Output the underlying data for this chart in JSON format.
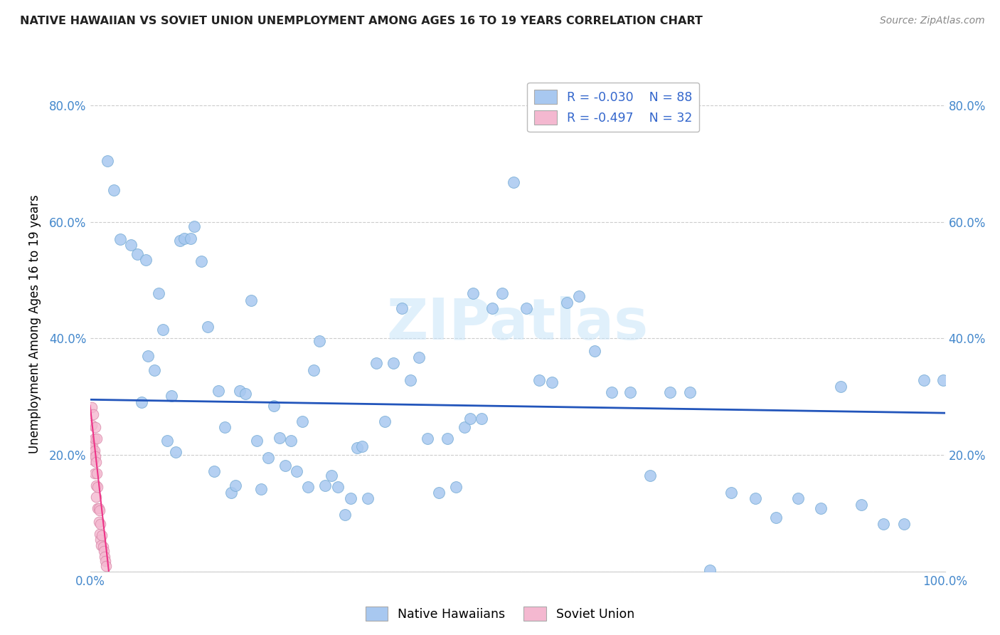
{
  "title": "NATIVE HAWAIIAN VS SOVIET UNION UNEMPLOYMENT AMONG AGES 16 TO 19 YEARS CORRELATION CHART",
  "source": "Source: ZipAtlas.com",
  "ylabel": "Unemployment Among Ages 16 to 19 years",
  "xlim": [
    0,
    1.0
  ],
  "ylim": [
    0,
    0.85
  ],
  "legend_entries": [
    {
      "label": "Native Hawaiians",
      "color": "#a8c8f0",
      "edge": "#7aaed6",
      "r": -0.03,
      "n": 88
    },
    {
      "label": "Soviet Union",
      "color": "#f4b8d0",
      "edge": "#d888a8",
      "r": -0.497,
      "n": 32
    }
  ],
  "blue_line": {
    "x0": 0.0,
    "x1": 1.0,
    "y0": 0.295,
    "y1": 0.272,
    "color": "#2255bb",
    "lw": 2.0
  },
  "pink_line": {
    "x0": 0.0,
    "x1": 0.022,
    "y0": 0.285,
    "y1": 0.0,
    "color": "#ee3388",
    "lw": 1.5
  },
  "scatter_blue": {
    "x": [
      0.02,
      0.028,
      0.035,
      0.048,
      0.055,
      0.06,
      0.065,
      0.068,
      0.075,
      0.08,
      0.085,
      0.09,
      0.095,
      0.1,
      0.105,
      0.11,
      0.118,
      0.122,
      0.13,
      0.138,
      0.145,
      0.15,
      0.158,
      0.165,
      0.17,
      0.175,
      0.182,
      0.188,
      0.195,
      0.2,
      0.208,
      0.215,
      0.222,
      0.228,
      0.235,
      0.242,
      0.248,
      0.255,
      0.262,
      0.268,
      0.275,
      0.282,
      0.29,
      0.298,
      0.305,
      0.312,
      0.318,
      0.325,
      0.335,
      0.345,
      0.355,
      0.365,
      0.375,
      0.385,
      0.395,
      0.408,
      0.418,
      0.428,
      0.438,
      0.448,
      0.458,
      0.47,
      0.482,
      0.495,
      0.51,
      0.525,
      0.54,
      0.558,
      0.572,
      0.59,
      0.61,
      0.632,
      0.655,
      0.678,
      0.702,
      0.725,
      0.75,
      0.778,
      0.802,
      0.828,
      0.855,
      0.878,
      0.902,
      0.928,
      0.952,
      0.975,
      0.998,
      0.445
    ],
    "y": [
      0.705,
      0.655,
      0.57,
      0.56,
      0.545,
      0.29,
      0.535,
      0.37,
      0.345,
      0.478,
      0.415,
      0.225,
      0.302,
      0.205,
      0.568,
      0.572,
      0.572,
      0.592,
      0.532,
      0.42,
      0.172,
      0.31,
      0.248,
      0.135,
      0.148,
      0.31,
      0.305,
      0.465,
      0.225,
      0.142,
      0.195,
      0.285,
      0.23,
      0.182,
      0.225,
      0.172,
      0.258,
      0.145,
      0.345,
      0.395,
      0.148,
      0.165,
      0.145,
      0.098,
      0.125,
      0.212,
      0.215,
      0.125,
      0.358,
      0.258,
      0.358,
      0.452,
      0.328,
      0.368,
      0.228,
      0.135,
      0.228,
      0.145,
      0.248,
      0.478,
      0.262,
      0.452,
      0.478,
      0.668,
      0.452,
      0.328,
      0.325,
      0.462,
      0.472,
      0.378,
      0.308,
      0.308,
      0.165,
      0.308,
      0.308,
      0.002,
      0.135,
      0.125,
      0.092,
      0.125,
      0.108,
      0.318,
      0.115,
      0.082,
      0.082,
      0.328,
      0.328,
      0.262
    ]
  },
  "scatter_pink": {
    "x": [
      0.002,
      0.002,
      0.003,
      0.003,
      0.004,
      0.004,
      0.004,
      0.005,
      0.005,
      0.005,
      0.006,
      0.006,
      0.007,
      0.007,
      0.007,
      0.008,
      0.008,
      0.009,
      0.009,
      0.01,
      0.01,
      0.011,
      0.011,
      0.012,
      0.012,
      0.013,
      0.014,
      0.015,
      0.016,
      0.017,
      0.018,
      0.019
    ],
    "y": [
      0.282,
      0.252,
      0.225,
      0.215,
      0.205,
      0.27,
      0.192,
      0.228,
      0.208,
      0.168,
      0.248,
      0.198,
      0.148,
      0.188,
      0.128,
      0.168,
      0.228,
      0.108,
      0.145,
      0.108,
      0.085,
      0.065,
      0.105,
      0.082,
      0.055,
      0.045,
      0.062,
      0.042,
      0.035,
      0.025,
      0.018,
      0.01
    ]
  },
  "watermark": "ZIPatlas",
  "bg": "#ffffff",
  "grid_color": "#cccccc",
  "tick_color": "#4488cc"
}
